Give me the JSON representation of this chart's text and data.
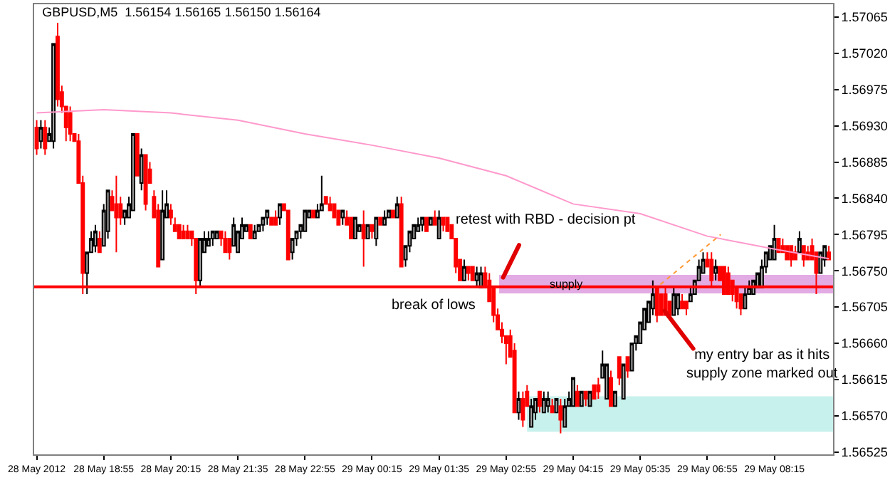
{
  "chart_data": {
    "type": "candlestick",
    "title": "GBPUSD,M5  1.56154 1.56165 1.56150 1.56164",
    "x": [
      "2012-05-28T17:35",
      "2012-05-28T17:40",
      "2012-05-28T17:45",
      "2012-05-28T17:50",
      "2012-05-28T17:55",
      "2012-05-28T18:00",
      "2012-05-28T18:05",
      "2012-05-28T18:10",
      "2012-05-28T18:15",
      "2012-05-28T18:20",
      "2012-05-28T18:25",
      "2012-05-28T18:30",
      "2012-05-28T18:35",
      "2012-05-28T18:40",
      "2012-05-28T18:45",
      "2012-05-28T18:50",
      "2012-05-28T18:55",
      "2012-05-28T19:00",
      "2012-05-28T19:05",
      "2012-05-28T19:10",
      "2012-05-28T19:15",
      "2012-05-28T19:20",
      "2012-05-28T19:25",
      "2012-05-28T19:30",
      "2012-05-28T19:35",
      "2012-05-28T19:40",
      "2012-05-28T19:45",
      "2012-05-28T19:50",
      "2012-05-28T19:55",
      "2012-05-28T20:00",
      "2012-05-28T20:05",
      "2012-05-28T20:10",
      "2012-05-28T20:15",
      "2012-05-28T20:20",
      "2012-05-28T20:25",
      "2012-05-28T20:30",
      "2012-05-28T20:35",
      "2012-05-28T20:40",
      "2012-05-28T20:45",
      "2012-05-28T20:50",
      "2012-05-28T20:55",
      "2012-05-28T21:00",
      "2012-05-28T21:05",
      "2012-05-28T21:10",
      "2012-05-28T21:15",
      "2012-05-28T21:20",
      "2012-05-28T21:25",
      "2012-05-28T21:30",
      "2012-05-28T21:35",
      "2012-05-28T21:40",
      "2012-05-28T21:45",
      "2012-05-28T21:50",
      "2012-05-28T21:55",
      "2012-05-28T22:00",
      "2012-05-28T22:05",
      "2012-05-28T22:10",
      "2012-05-28T22:15",
      "2012-05-28T22:20",
      "2012-05-28T22:25",
      "2012-05-28T22:30",
      "2012-05-28T22:35",
      "2012-05-28T22:40",
      "2012-05-28T22:45",
      "2012-05-28T22:50",
      "2012-05-28T22:55",
      "2012-05-28T23:00",
      "2012-05-28T23:05",
      "2012-05-28T23:10",
      "2012-05-28T23:15",
      "2012-05-28T23:20",
      "2012-05-28T23:25",
      "2012-05-28T23:30",
      "2012-05-28T23:35",
      "2012-05-28T23:40",
      "2012-05-28T23:45",
      "2012-05-28T23:50",
      "2012-05-28T23:55",
      "2012-05-29T00:00",
      "2012-05-29T00:05",
      "2012-05-29T00:10",
      "2012-05-29T00:15",
      "2012-05-29T00:20",
      "2012-05-29T00:25",
      "2012-05-29T00:30",
      "2012-05-29T00:35",
      "2012-05-29T00:40",
      "2012-05-29T00:45",
      "2012-05-29T00:50",
      "2012-05-29T00:55",
      "2012-05-29T01:00",
      "2012-05-29T01:05",
      "2012-05-29T01:10",
      "2012-05-29T01:15",
      "2012-05-29T01:20",
      "2012-05-29T01:25",
      "2012-05-29T01:30",
      "2012-05-29T01:35",
      "2012-05-29T01:40",
      "2012-05-29T01:45",
      "2012-05-29T01:50",
      "2012-05-29T01:55",
      "2012-05-29T02:00",
      "2012-05-29T02:05",
      "2012-05-29T02:10",
      "2012-05-29T02:15",
      "2012-05-29T02:20",
      "2012-05-29T02:25",
      "2012-05-29T02:30",
      "2012-05-29T02:35",
      "2012-05-29T02:40",
      "2012-05-29T02:45",
      "2012-05-29T02:50",
      "2012-05-29T02:55",
      "2012-05-29T03:00",
      "2012-05-29T03:05",
      "2012-05-29T03:10",
      "2012-05-29T03:15",
      "2012-05-29T03:20",
      "2012-05-29T03:25",
      "2012-05-29T03:30",
      "2012-05-29T03:35",
      "2012-05-29T03:40",
      "2012-05-29T03:45",
      "2012-05-29T03:50",
      "2012-05-29T03:55",
      "2012-05-29T04:00",
      "2012-05-29T04:05",
      "2012-05-29T04:10",
      "2012-05-29T04:15",
      "2012-05-29T04:20",
      "2012-05-29T04:25",
      "2012-05-29T04:30",
      "2012-05-29T04:35",
      "2012-05-29T04:40",
      "2012-05-29T04:45",
      "2012-05-29T04:50",
      "2012-05-29T04:55",
      "2012-05-29T05:00",
      "2012-05-29T05:05",
      "2012-05-29T05:10",
      "2012-05-29T05:15",
      "2012-05-29T05:20",
      "2012-05-29T05:25",
      "2012-05-29T05:30",
      "2012-05-29T05:35",
      "2012-05-29T05:40",
      "2012-05-29T05:45",
      "2012-05-29T05:50",
      "2012-05-29T05:55",
      "2012-05-29T06:00",
      "2012-05-29T06:05",
      "2012-05-29T06:10",
      "2012-05-29T06:15",
      "2012-05-29T06:20",
      "2012-05-29T06:25",
      "2012-05-29T06:30",
      "2012-05-29T06:35",
      "2012-05-29T06:40",
      "2012-05-29T06:45",
      "2012-05-29T06:50",
      "2012-05-29T06:55",
      "2012-05-29T07:00",
      "2012-05-29T07:05",
      "2012-05-29T07:10",
      "2012-05-29T07:15",
      "2012-05-29T07:20",
      "2012-05-29T07:25",
      "2012-05-29T07:30",
      "2012-05-29T07:35",
      "2012-05-29T07:40",
      "2012-05-29T07:45",
      "2012-05-29T07:50",
      "2012-05-29T07:55",
      "2012-05-29T08:00",
      "2012-05-29T08:05",
      "2012-05-29T08:10",
      "2012-05-29T08:15",
      "2012-05-29T08:20",
      "2012-05-29T08:25",
      "2012-05-29T08:30",
      "2012-05-29T08:35",
      "2012-05-29T08:40",
      "2012-05-29T08:45",
      "2012-05-29T08:50",
      "2012-05-29T08:55",
      "2012-05-29T09:00",
      "2012-05-29T09:05",
      "2012-05-29T09:10",
      "2012-05-29T09:15",
      "2012-05-29T09:20"
    ],
    "ohlc": [
      [
        1.56928,
        1.56937,
        1.56894,
        1.56902
      ],
      [
        1.56911,
        1.56937,
        1.56902,
        1.56928
      ],
      [
        1.56928,
        1.56937,
        1.56894,
        1.56902
      ],
      [
        1.56911,
        1.56928,
        1.56911,
        1.5692
      ],
      [
        1.56911,
        1.57032,
        1.56902,
        1.57032
      ],
      [
        1.57041,
        1.57058,
        1.56954,
        1.56963
      ],
      [
        1.56972,
        1.5698,
        1.56946,
        1.56954
      ],
      [
        1.56954,
        1.56954,
        1.56911,
        1.56928
      ],
      [
        1.56946,
        1.56954,
        1.56911,
        1.5692
      ],
      [
        1.5692,
        1.5692,
        1.56911,
        1.56911
      ],
      [
        1.56911,
        1.5692,
        1.56859,
        1.56859
      ],
      [
        1.56859,
        1.56868,
        1.56721,
        1.56747
      ],
      [
        1.56747,
        1.56773,
        1.56721,
        1.56773
      ],
      [
        1.56773,
        1.56799,
        1.56773,
        1.5679
      ],
      [
        1.56781,
        1.56807,
        1.56773,
        1.56799
      ],
      [
        1.5679,
        1.56799,
        1.56773,
        1.56773
      ],
      [
        1.56781,
        1.56833,
        1.56781,
        1.56825
      ],
      [
        1.56799,
        1.5685,
        1.5679,
        1.5685
      ],
      [
        1.56842,
        1.5685,
        1.56825,
        1.56825
      ],
      [
        1.56833,
        1.56868,
        1.56773,
        1.56816
      ],
      [
        1.56833,
        1.56842,
        1.56807,
        1.56816
      ],
      [
        1.56816,
        1.56825,
        1.56807,
        1.56825
      ],
      [
        1.56816,
        1.56842,
        1.56816,
        1.56833
      ],
      [
        1.56825,
        1.5692,
        1.56825,
        1.5692
      ],
      [
        1.5692,
        1.5692,
        1.56868,
        1.56868
      ],
      [
        1.56859,
        1.56902,
        1.5685,
        1.56894
      ],
      [
        1.56894,
        1.56894,
        1.56825,
        1.56833
      ],
      [
        1.56876,
        1.56885,
        1.56859,
        1.56859
      ],
      [
        1.56842,
        1.5685,
        1.56816,
        1.56816
      ],
      [
        1.56825,
        1.56833,
        1.56755,
        1.56755
      ],
      [
        1.56764,
        1.5685,
        1.56764,
        1.56825
      ],
      [
        1.56816,
        1.5685,
        1.56816,
        1.56833
      ],
      [
        1.56825,
        1.56833,
        1.56807,
        1.56816
      ],
      [
        1.56807,
        1.56816,
        1.56799,
        1.56799
      ],
      [
        1.56807,
        1.56807,
        1.5679,
        1.5679
      ],
      [
        1.56799,
        1.56807,
        1.5679,
        1.5679
      ],
      [
        1.56799,
        1.56807,
        1.5679,
        1.5679
      ],
      [
        1.56799,
        1.56799,
        1.56781,
        1.5679
      ],
      [
        1.5679,
        1.5679,
        1.56721,
        1.56738
      ],
      [
        1.56738,
        1.5679,
        1.56729,
        1.5679
      ],
      [
        1.56773,
        1.56799,
        1.56773,
        1.5679
      ],
      [
        1.56781,
        1.56799,
        1.56781,
        1.5679
      ],
      [
        1.5679,
        1.56799,
        1.56781,
        1.56799
      ],
      [
        1.5679,
        1.56799,
        1.5679,
        1.56799
      ],
      [
        1.56799,
        1.56799,
        1.56781,
        1.5679
      ],
      [
        1.5679,
        1.56799,
        1.56773,
        1.56773
      ],
      [
        1.5679,
        1.5679,
        1.56764,
        1.56773
      ],
      [
        1.56781,
        1.56816,
        1.56781,
        1.56807
      ],
      [
        1.56773,
        1.56799,
        1.56773,
        1.56799
      ],
      [
        1.5679,
        1.56816,
        1.5679,
        1.56807
      ],
      [
        1.56799,
        1.56807,
        1.56799,
        1.56807
      ],
      [
        1.56807,
        1.56807,
        1.5679,
        1.5679
      ],
      [
        1.5679,
        1.56807,
        1.5679,
        1.56799
      ],
      [
        1.56799,
        1.56807,
        1.56799,
        1.56807
      ],
      [
        1.56807,
        1.56816,
        1.56799,
        1.56816
      ],
      [
        1.56816,
        1.56825,
        1.56807,
        1.56825
      ],
      [
        1.56816,
        1.56816,
        1.56807,
        1.56807
      ],
      [
        1.56816,
        1.56825,
        1.56807,
        1.56807
      ],
      [
        1.56816,
        1.56833,
        1.56807,
        1.56833
      ],
      [
        1.56833,
        1.56833,
        1.56825,
        1.56825
      ],
      [
        1.56825,
        1.56825,
        1.56764,
        1.56764
      ],
      [
        1.56773,
        1.5679,
        1.56764,
        1.5679
      ],
      [
        1.5679,
        1.56799,
        1.56781,
        1.56799
      ],
      [
        1.56799,
        1.56807,
        1.5679,
        1.56807
      ],
      [
        1.56799,
        1.56825,
        1.56799,
        1.56825
      ],
      [
        1.56816,
        1.56825,
        1.56816,
        1.56825
      ],
      [
        1.56825,
        1.56825,
        1.56816,
        1.56816
      ],
      [
        1.56816,
        1.56833,
        1.56816,
        1.56825
      ],
      [
        1.56825,
        1.56868,
        1.56825,
        1.56833
      ],
      [
        1.56842,
        1.56842,
        1.56833,
        1.56833
      ],
      [
        1.56833,
        1.56842,
        1.56825,
        1.56825
      ],
      [
        1.56833,
        1.56833,
        1.56816,
        1.56816
      ],
      [
        1.56825,
        1.56825,
        1.56807,
        1.56807
      ],
      [
        1.56816,
        1.56825,
        1.56807,
        1.56825
      ],
      [
        1.56816,
        1.56825,
        1.56807,
        1.56807
      ],
      [
        1.56816,
        1.56816,
        1.5679,
        1.5679
      ],
      [
        1.5679,
        1.56816,
        1.5679,
        1.56816
      ],
      [
        1.56799,
        1.56807,
        1.56799,
        1.56807
      ],
      [
        1.56807,
        1.56825,
        1.56755,
        1.5679
      ],
      [
        1.5679,
        1.56807,
        1.5679,
        1.56807
      ],
      [
        1.56807,
        1.56807,
        1.5679,
        1.56799
      ],
      [
        1.5679,
        1.56816,
        1.56781,
        1.56816
      ],
      [
        1.56816,
        1.56816,
        1.56807,
        1.56807
      ],
      [
        1.56807,
        1.56825,
        1.56807,
        1.56816
      ],
      [
        1.56816,
        1.56825,
        1.56816,
        1.56825
      ],
      [
        1.56825,
        1.56825,
        1.56816,
        1.56816
      ],
      [
        1.56816,
        1.56842,
        1.56816,
        1.56833
      ],
      [
        1.56833,
        1.56842,
        1.56755,
        1.56755
      ],
      [
        1.56764,
        1.56781,
        1.56755,
        1.56781
      ],
      [
        1.56781,
        1.56799,
        1.56773,
        1.56799
      ],
      [
        1.5679,
        1.56807,
        1.5679,
        1.56807
      ],
      [
        1.56799,
        1.56816,
        1.56799,
        1.56807
      ],
      [
        1.56807,
        1.56816,
        1.56799,
        1.56816
      ],
      [
        1.56816,
        1.56816,
        1.56799,
        1.56799
      ],
      [
        1.56807,
        1.56816,
        1.56807,
        1.56816
      ],
      [
        1.56816,
        1.56825,
        1.56807,
        1.56807
      ],
      [
        1.5679,
        1.56825,
        1.5679,
        1.56816
      ],
      [
        1.56816,
        1.56816,
        1.56799,
        1.56807
      ],
      [
        1.56816,
        1.56816,
        1.56799,
        1.56799
      ],
      [
        1.56807,
        1.56807,
        1.5679,
        1.5679
      ],
      [
        1.5679,
        1.5679,
        1.56747,
        1.56755
      ],
      [
        1.56764,
        1.56764,
        1.56738,
        1.56738
      ],
      [
        1.56738,
        1.56764,
        1.56738,
        1.56755
      ],
      [
        1.56755,
        1.56755,
        1.56738,
        1.56747
      ],
      [
        1.56755,
        1.56755,
        1.56738,
        1.56738
      ],
      [
        1.56738,
        1.56755,
        1.56729,
        1.56747
      ],
      [
        1.56729,
        1.56755,
        1.56729,
        1.56747
      ],
      [
        1.56747,
        1.56755,
        1.56729,
        1.56729
      ],
      [
        1.56738,
        1.56747,
        1.56712,
        1.56712
      ],
      [
        1.56729,
        1.56729,
        1.56686,
        1.56695
      ],
      [
        1.56695,
        1.56703,
        1.56677,
        1.56677
      ],
      [
        1.56677,
        1.56686,
        1.5666,
        1.56669
      ],
      [
        1.56669,
        1.56669,
        1.56634,
        1.5666
      ],
      [
        1.56669,
        1.56677,
        1.56643,
        1.56643
      ],
      [
        1.56651,
        1.5666,
        1.56574,
        1.56574
      ],
      [
        1.56574,
        1.566,
        1.56565,
        1.56591
      ],
      [
        1.56591,
        1.566,
        1.56556,
        1.56565
      ],
      [
        1.566,
        1.56608,
        1.56582,
        1.56582
      ],
      [
        1.56556,
        1.56591,
        1.56556,
        1.56582
      ],
      [
        1.56574,
        1.56591,
        1.56565,
        1.56591
      ],
      [
        1.566,
        1.566,
        1.56574,
        1.56582
      ],
      [
        1.56574,
        1.566,
        1.56574,
        1.56591
      ],
      [
        1.56582,
        1.566,
        1.56574,
        1.56591
      ],
      [
        1.56582,
        1.56591,
        1.56574,
        1.56574
      ],
      [
        1.56574,
        1.56591,
        1.56574,
        1.56591
      ],
      [
        1.56582,
        1.56591,
        1.56548,
        1.56565
      ],
      [
        1.56556,
        1.56591,
        1.56556,
        1.56582
      ],
      [
        1.56582,
        1.566,
        1.56582,
        1.56591
      ],
      [
        1.56582,
        1.56617,
        1.56582,
        1.56617
      ],
      [
        1.566,
        1.56608,
        1.56582,
        1.56582
      ],
      [
        1.56582,
        1.566,
        1.56582,
        1.566
      ],
      [
        1.566,
        1.566,
        1.56582,
        1.56591
      ],
      [
        1.56582,
        1.566,
        1.56582,
        1.566
      ],
      [
        1.56608,
        1.56608,
        1.56591,
        1.56591
      ],
      [
        1.56608,
        1.56617,
        1.56591,
        1.566
      ],
      [
        1.56617,
        1.56651,
        1.56617,
        1.56634
      ],
      [
        1.56591,
        1.56634,
        1.56591,
        1.56634
      ],
      [
        1.56617,
        1.56626,
        1.56582,
        1.56582
      ],
      [
        1.56582,
        1.566,
        1.56582,
        1.566
      ],
      [
        1.56643,
        1.56643,
        1.56608,
        1.56617
      ],
      [
        1.56591,
        1.56634,
        1.56591,
        1.56634
      ],
      [
        1.56643,
        1.56643,
        1.56617,
        1.56626
      ],
      [
        1.56626,
        1.5666,
        1.56626,
        1.5666
      ],
      [
        1.5666,
        1.56669,
        1.56651,
        1.56669
      ],
      [
        1.5666,
        1.56686,
        1.5666,
        1.56686
      ],
      [
        1.56677,
        1.56703,
        1.56677,
        1.56703
      ],
      [
        1.56686,
        1.56712,
        1.56686,
        1.56712
      ],
      [
        1.56703,
        1.56738,
        1.56695,
        1.56721
      ],
      [
        1.56729,
        1.56729,
        1.56686,
        1.56695
      ],
      [
        1.56721,
        1.56721,
        1.56695,
        1.56695
      ],
      [
        1.56721,
        1.56729,
        1.56695,
        1.56695
      ],
      [
        1.56712,
        1.56712,
        1.56695,
        1.56695
      ],
      [
        1.56695,
        1.56729,
        1.56695,
        1.56721
      ],
      [
        1.56703,
        1.56721,
        1.56695,
        1.56721
      ],
      [
        1.56712,
        1.56721,
        1.56703,
        1.56703
      ],
      [
        1.56712,
        1.56712,
        1.56695,
        1.56703
      ],
      [
        1.56712,
        1.56729,
        1.56712,
        1.56721
      ],
      [
        1.56721,
        1.56738,
        1.56721,
        1.56738
      ],
      [
        1.56738,
        1.56764,
        1.56738,
        1.56755
      ],
      [
        1.56747,
        1.56773,
        1.56747,
        1.56764
      ],
      [
        1.56764,
        1.56773,
        1.56755,
        1.56755
      ],
      [
        1.56764,
        1.56773,
        1.56729,
        1.56738
      ],
      [
        1.56747,
        1.56764,
        1.56738,
        1.56755
      ],
      [
        1.56755,
        1.56755,
        1.56738,
        1.56738
      ],
      [
        1.56755,
        1.56755,
        1.56721,
        1.56721
      ],
      [
        1.56747,
        1.56755,
        1.56721,
        1.56721
      ],
      [
        1.56738,
        1.56738,
        1.56712,
        1.56721
      ],
      [
        1.56729,
        1.56729,
        1.56703,
        1.56712
      ],
      [
        1.56721,
        1.56721,
        1.56695,
        1.56703
      ],
      [
        1.56703,
        1.56729,
        1.56703,
        1.56721
      ],
      [
        1.56721,
        1.56738,
        1.56721,
        1.56729
      ],
      [
        1.56721,
        1.56738,
        1.56721,
        1.56738
      ],
      [
        1.56729,
        1.56747,
        1.56729,
        1.56747
      ],
      [
        1.56729,
        1.56764,
        1.56729,
        1.56755
      ],
      [
        1.56755,
        1.56773,
        1.56747,
        1.56773
      ],
      [
        1.56764,
        1.56781,
        1.56764,
        1.56781
      ],
      [
        1.56764,
        1.56807,
        1.56764,
        1.5679
      ],
      [
        1.5679,
        1.5679,
        1.56773,
        1.56773
      ],
      [
        1.56781,
        1.5679,
        1.56773,
        1.56773
      ],
      [
        1.56781,
        1.56781,
        1.56764,
        1.56764
      ],
      [
        1.56781,
        1.56781,
        1.56755,
        1.56764
      ],
      [
        1.56773,
        1.56781,
        1.56764,
        1.56764
      ],
      [
        1.56773,
        1.56799,
        1.56773,
        1.5679
      ],
      [
        1.56781,
        1.56781,
        1.56755,
        1.56764
      ],
      [
        1.56773,
        1.56781,
        1.56764,
        1.56764
      ],
      [
        1.56781,
        1.5679,
        1.56764,
        1.56764
      ],
      [
        1.56773,
        1.56773,
        1.56721,
        1.56747
      ],
      [
        1.56747,
        1.56773,
        1.56747,
        1.56773
      ],
      [
        1.56764,
        1.56781,
        1.56755,
        1.56781
      ],
      [
        1.56773,
        1.56781,
        1.56764,
        1.56764
      ]
    ],
    "series": [
      {
        "type": "line",
        "color": "#ff99cc",
        "x": [
          "2012-05-28T17:35",
          "2012-05-28T18:55",
          "2012-05-28T20:15",
          "2012-05-28T21:35",
          "2012-05-28T22:55",
          "2012-05-29T00:15",
          "2012-05-29T01:35",
          "2012-05-29T02:55",
          "2012-05-29T04:15",
          "2012-05-29T05:35",
          "2012-05-29T06:55",
          "2012-05-29T08:15",
          "2012-05-29T09:20"
        ],
        "values": [
          1.56946,
          1.5695,
          1.56946,
          1.56937,
          1.5692,
          1.56906,
          1.5689,
          1.56868,
          1.56833,
          1.56821,
          1.56793,
          1.56777,
          1.56765
        ]
      },
      {
        "type": "line",
        "color": "#ff9933",
        "line_style": "dotted",
        "x": [
          "2012-05-29T05:59",
          "2012-05-29T07:11"
        ],
        "values": [
          1.56733,
          1.56795
        ]
      }
    ],
    "xlim": [
      "2012-05-28T17:32",
      "2012-05-29T09:25"
    ],
    "xticks": [
      {
        "value": "2012-05-28T17:35",
        "label": "28 May 2012"
      },
      {
        "value": "2012-05-28T18:55",
        "label": "28 May 18:55"
      },
      {
        "value": "2012-05-28T20:15",
        "label": "28 May 20:15"
      },
      {
        "value": "2012-05-28T21:35",
        "label": "28 May 21:35"
      },
      {
        "value": "2012-05-28T22:55",
        "label": "28 May 22:55"
      },
      {
        "value": "2012-05-29T00:15",
        "label": "29 May 00:15"
      },
      {
        "value": "2012-05-29T01:35",
        "label": "29 May 01:35"
      },
      {
        "value": "2012-05-29T02:55",
        "label": "29 May 02:55"
      },
      {
        "value": "2012-05-29T04:15",
        "label": "29 May 04:15"
      },
      {
        "value": "2012-05-29T05:35",
        "label": "29 May 05:35"
      },
      {
        "value": "2012-05-29T06:55",
        "label": "29 May 06:55"
      },
      {
        "value": "2012-05-29T08:15",
        "label": "29 May 08:15"
      }
    ],
    "ylim": [
      1.56522,
      1.57081
    ],
    "yticks": [
      {
        "value": 1.56525,
        "label": "1.56525"
      },
      {
        "value": 1.5657,
        "label": "1.56570"
      },
      {
        "value": 1.56615,
        "label": "1.56615"
      },
      {
        "value": 1.5666,
        "label": "1.56660"
      },
      {
        "value": 1.56705,
        "label": "1.56705"
      },
      {
        "value": 1.5675,
        "label": "1.56750"
      },
      {
        "value": 1.56795,
        "label": "1.56795"
      },
      {
        "value": 1.5684,
        "label": "1.56840"
      },
      {
        "value": 1.56885,
        "label": "1.56885"
      },
      {
        "value": 1.5693,
        "label": "1.56930"
      },
      {
        "value": 1.56975,
        "label": "1.56975"
      },
      {
        "value": 1.5702,
        "label": "1.57020"
      },
      {
        "value": 1.57065,
        "label": "1.57065"
      }
    ],
    "ref_lines": [
      {
        "axis": "y",
        "value": 1.5673,
        "color": "#ff0000"
      }
    ],
    "bands": [
      {
        "axis": "y",
        "from": 1.56722,
        "to": 1.56745,
        "label": "supply",
        "color": "#cc66cc"
      },
      {
        "axis": "y",
        "from": 1.5655,
        "to": 1.56594,
        "color": "#99e6dd"
      }
    ],
    "annotations": [
      "retest with RBD - decision pt",
      "break of lows",
      "my entry bar as it hits\nsupply zone marked out"
    ]
  }
}
